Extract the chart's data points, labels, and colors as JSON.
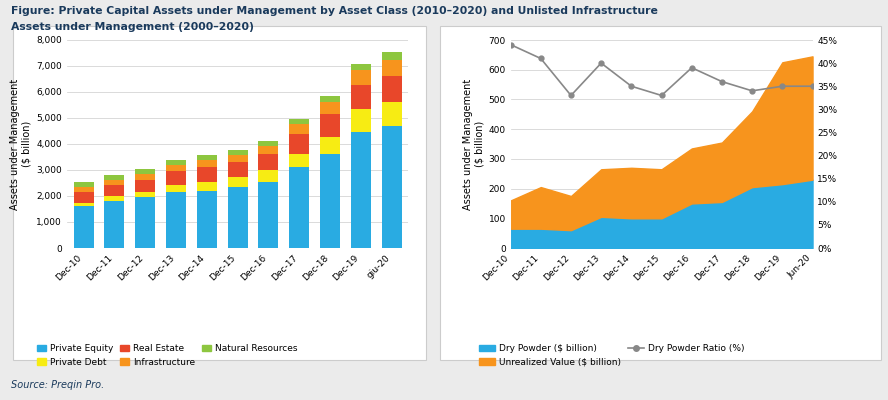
{
  "title_line1": "Figure: Private Capital Assets under Management by Asset Class (2010–2020) and Unlisted Infrastructure",
  "title_line2": "Assets under Management (2000–2020)",
  "source": "Source: Preqin Pro.",
  "left_chart": {
    "ylabel": "Assets under Management\n($ billion)",
    "categories": [
      "Dec-10",
      "Dec-11",
      "Dec-12",
      "Dec-13",
      "Dec-14",
      "Dec-15",
      "Dec-16",
      "Dec-17",
      "Dec-18",
      "Dec-19",
      "giu-20"
    ],
    "private_equity": [
      1600,
      1800,
      1950,
      2150,
      2200,
      2350,
      2550,
      3100,
      3600,
      4450,
      4700
    ],
    "private_debt": [
      150,
      200,
      220,
      290,
      340,
      380,
      440,
      530,
      670,
      880,
      930
    ],
    "real_estate": [
      400,
      420,
      460,
      530,
      580,
      580,
      620,
      750,
      900,
      950,
      1000
    ],
    "infrastructure": [
      180,
      190,
      210,
      230,
      260,
      280,
      320,
      380,
      460,
      560,
      600
    ],
    "natural_resources": [
      220,
      200,
      200,
      200,
      190,
      190,
      190,
      190,
      200,
      240,
      290
    ],
    "ylim": [
      0,
      8000
    ],
    "yticks": [
      0,
      1000,
      2000,
      3000,
      4000,
      5000,
      6000,
      7000,
      8000
    ],
    "colors": {
      "private_equity": "#29ABE2",
      "private_debt": "#F7EC13",
      "real_estate": "#E8472A",
      "infrastructure": "#F7941D",
      "natural_resources": "#8DC63F"
    }
  },
  "right_chart": {
    "ylabel": "Assets under Management\n($ billion)",
    "categories": [
      "Dec-10",
      "Dec-11",
      "Dec-12",
      "Dec-13",
      "Dec-14",
      "Dec-15",
      "Dec-16",
      "Dec-17",
      "Dec-18",
      "Dec-19",
      "Jun-20"
    ],
    "dry_powder": [
      65,
      65,
      60,
      105,
      100,
      100,
      150,
      155,
      205,
      215,
      230
    ],
    "unrealized_value": [
      95,
      140,
      115,
      160,
      170,
      165,
      185,
      200,
      255,
      410,
      415
    ],
    "dry_powder_ratio": [
      44,
      41,
      33,
      40,
      35,
      33,
      39,
      36,
      34,
      35,
      35
    ],
    "ylim_left": [
      0,
      700
    ],
    "yticks_left": [
      0,
      100,
      200,
      300,
      400,
      500,
      600,
      700
    ],
    "ylim_right": [
      0,
      45
    ],
    "yticks_right_vals": [
      0,
      5,
      10,
      15,
      20,
      25,
      30,
      35,
      40,
      45
    ],
    "yticks_right_labels": [
      "0%",
      "5%",
      "10%",
      "15%",
      "20%",
      "25%",
      "30%",
      "35%",
      "40%",
      "45%"
    ],
    "colors": {
      "dry_powder": "#29ABE2",
      "unrealized_value": "#F7941D",
      "ratio_line": "#888888"
    }
  },
  "bg_color": "#EBEBEB",
  "panel_color": "#FFFFFF",
  "title_color": "#1A3A5C",
  "source_color": "#1A3A5C"
}
